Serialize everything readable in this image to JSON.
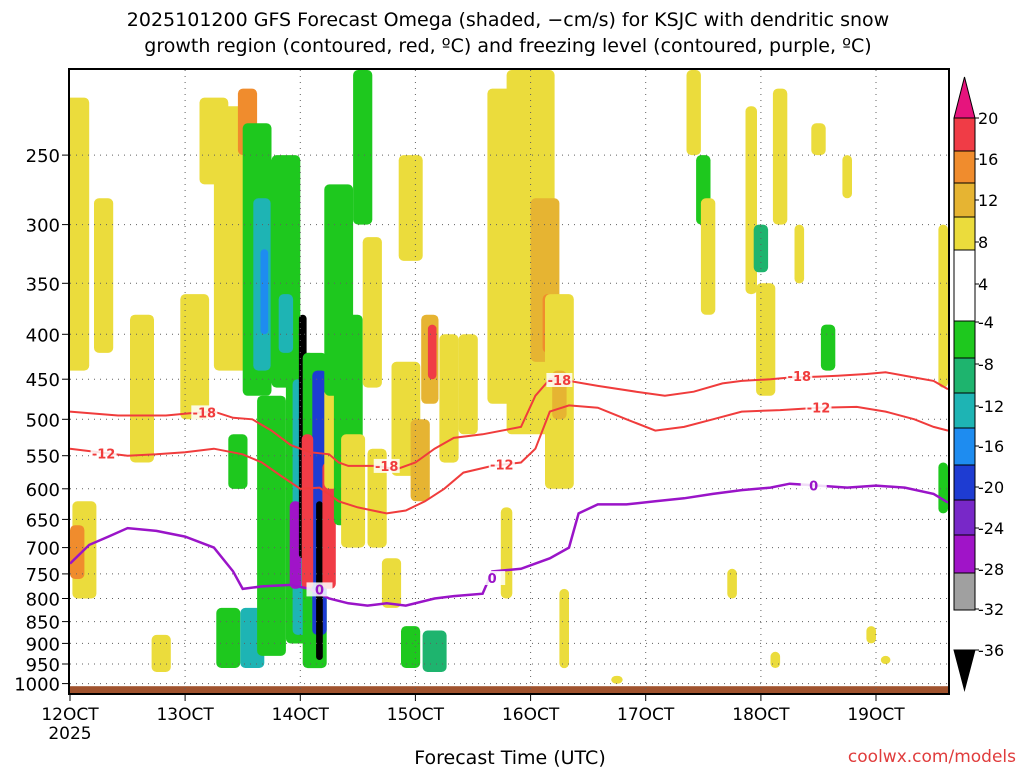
{
  "chart_data": {
    "type": "heatmap",
    "title_line1": "2025101200 GFS Forecast Omega (shaded, −cm/s) for KSJC with dendritic snow",
    "title_line2": "growth region (contoured, red, ºC) and freezing level (contoured, purple, ºC)",
    "xlabel": "Forecast Time (UTC)",
    "ylabel": "",
    "credit": "coolwx.com/models",
    "x_hours_range": [
      0,
      183
    ],
    "x_ticks": [
      {
        "label": "12OCT",
        "hour": 0,
        "sub": "2025"
      },
      {
        "label": "13OCT",
        "hour": 24
      },
      {
        "label": "14OCT",
        "hour": 48
      },
      {
        "label": "15OCT",
        "hour": 72
      },
      {
        "label": "16OCT",
        "hour": 96
      },
      {
        "label": "17OCT",
        "hour": 120
      },
      {
        "label": "18OCT",
        "hour": 144
      },
      {
        "label": "19OCT",
        "hour": 168
      }
    ],
    "y_ticks": [
      250,
      300,
      350,
      400,
      450,
      500,
      550,
      600,
      650,
      700,
      750,
      800,
      850,
      900,
      950,
      1000
    ],
    "y_range_hpa": [
      200,
      1025
    ],
    "grid": true,
    "colorbar": {
      "labels": [
        "20",
        "16",
        "12",
        "8",
        "4",
        "-4",
        "-8",
        "-12",
        "-16",
        "-20",
        "-24",
        "-28",
        "-32",
        "-36"
      ],
      "levels": [
        {
          "min": 16,
          "max": 20,
          "color": "#f03c46"
        },
        {
          "min": 12,
          "max": 16,
          "color": "#f08c2d"
        },
        {
          "min": 8,
          "max": 12,
          "color": "#e6b432"
        },
        {
          "min": 4,
          "max": 8,
          "color": "#ebdc3c"
        },
        {
          "min": -4,
          "max": 4,
          "color": "#ffffff"
        },
        {
          "min": -8,
          "max": -4,
          "color": "#1ec81e"
        },
        {
          "min": -12,
          "max": -8,
          "color": "#1eb46e"
        },
        {
          "min": -16,
          "max": -12,
          "color": "#1eb4b4"
        },
        {
          "min": -20,
          "max": -16,
          "color": "#1e8cf0"
        },
        {
          "min": -24,
          "max": -20,
          "color": "#1e3cd2"
        },
        {
          "min": -28,
          "max": -24,
          "color": "#7828c8"
        },
        {
          "min": -32,
          "max": -28,
          "color": "#a014c8"
        },
        {
          "min": -36,
          "max": -32,
          "color": "#a0a0a0"
        }
      ],
      "top_cap_color": "#e6147d",
      "bottom_cap_color": "#000000"
    },
    "contours": [
      {
        "name": "-18C",
        "label": "-18",
        "color": "#f03c3c",
        "points": [
          [
            0,
            490
          ],
          [
            10,
            495
          ],
          [
            20,
            495
          ],
          [
            25,
            492
          ],
          [
            30,
            490
          ],
          [
            34,
            498
          ],
          [
            38,
            500
          ],
          [
            42,
            515
          ],
          [
            46,
            535
          ],
          [
            50,
            545
          ],
          [
            54,
            548
          ],
          [
            56,
            560
          ],
          [
            58,
            565
          ],
          [
            64,
            565
          ],
          [
            68,
            570
          ],
          [
            72,
            560
          ],
          [
            76,
            540
          ],
          [
            80,
            525
          ],
          [
            86,
            520
          ],
          [
            94,
            510
          ],
          [
            97,
            470
          ],
          [
            100,
            450
          ],
          [
            104,
            452
          ],
          [
            110,
            458
          ],
          [
            118,
            465
          ],
          [
            124,
            470
          ],
          [
            130,
            465
          ],
          [
            136,
            455
          ],
          [
            140,
            452
          ],
          [
            146,
            450
          ],
          [
            150,
            448
          ],
          [
            156,
            447
          ],
          [
            160,
            446
          ],
          [
            166,
            444
          ],
          [
            170,
            442
          ],
          [
            176,
            448
          ],
          [
            180,
            452
          ],
          [
            183,
            462
          ]
        ],
        "labels": [
          {
            "hour": 28,
            "hpa": 491
          },
          {
            "hour": 66,
            "hpa": 565
          },
          {
            "hour": 102,
            "hpa": 451
          },
          {
            "hour": 152,
            "hpa": 446
          }
        ]
      },
      {
        "name": "-12C",
        "label": "-12",
        "color": "#f03c3c",
        "points": [
          [
            0,
            540
          ],
          [
            6,
            545
          ],
          [
            12,
            550
          ],
          [
            18,
            548
          ],
          [
            24,
            545
          ],
          [
            30,
            540
          ],
          [
            36,
            548
          ],
          [
            40,
            560
          ],
          [
            44,
            580
          ],
          [
            48,
            600
          ],
          [
            52,
            598
          ],
          [
            56,
            620
          ],
          [
            60,
            630
          ],
          [
            66,
            640
          ],
          [
            70,
            635
          ],
          [
            74,
            620
          ],
          [
            78,
            600
          ],
          [
            82,
            575
          ],
          [
            88,
            565
          ],
          [
            94,
            560
          ],
          [
            97,
            540
          ],
          [
            100,
            490
          ],
          [
            104,
            482
          ],
          [
            110,
            485
          ],
          [
            116,
            500
          ],
          [
            122,
            515
          ],
          [
            128,
            510
          ],
          [
            134,
            500
          ],
          [
            140,
            490
          ],
          [
            148,
            488
          ],
          [
            156,
            485
          ],
          [
            164,
            484
          ],
          [
            170,
            490
          ],
          [
            176,
            500
          ],
          [
            180,
            510
          ],
          [
            183,
            515
          ]
        ],
        "labels": [
          {
            "hour": 7,
            "hpa": 547
          },
          {
            "hour": 90,
            "hpa": 563
          },
          {
            "hour": 156,
            "hpa": 485
          }
        ]
      },
      {
        "name": "0C",
        "label": "0",
        "color": "#9a14c8",
        "points": [
          [
            0,
            730
          ],
          [
            4,
            695
          ],
          [
            8,
            680
          ],
          [
            12,
            665
          ],
          [
            18,
            670
          ],
          [
            24,
            680
          ],
          [
            30,
            700
          ],
          [
            34,
            745
          ],
          [
            36,
            780
          ],
          [
            40,
            775
          ],
          [
            46,
            772
          ],
          [
            50,
            780
          ],
          [
            54,
            800
          ],
          [
            58,
            810
          ],
          [
            62,
            815
          ],
          [
            66,
            810
          ],
          [
            70,
            815
          ],
          [
            76,
            800
          ],
          [
            80,
            795
          ],
          [
            86,
            790
          ],
          [
            88,
            745
          ],
          [
            94,
            740
          ],
          [
            100,
            720
          ],
          [
            104,
            700
          ],
          [
            106,
            640
          ],
          [
            110,
            625
          ],
          [
            116,
            625
          ],
          [
            122,
            620
          ],
          [
            128,
            615
          ],
          [
            134,
            608
          ],
          [
            140,
            602
          ],
          [
            146,
            598
          ],
          [
            150,
            592
          ],
          [
            156,
            595
          ],
          [
            162,
            598
          ],
          [
            168,
            595
          ],
          [
            174,
            598
          ],
          [
            180,
            608
          ],
          [
            183,
            622
          ]
        ],
        "labels": [
          {
            "hour": 52,
            "hpa": 781
          },
          {
            "hour": 88,
            "hpa": 758
          },
          {
            "hour": 155,
            "hpa": 595
          }
        ]
      }
    ],
    "omega_regions": [
      {
        "hour": 1,
        "hw": 3,
        "hpa_top": 215,
        "hpa_bot": 440,
        "level": 4
      },
      {
        "hour": 3,
        "hw": 2.5,
        "hpa_top": 620,
        "hpa_bot": 800,
        "level": 4
      },
      {
        "hour": 1.5,
        "hw": 1.5,
        "hpa_top": 660,
        "hpa_bot": 760,
        "level": 12
      },
      {
        "hour": 7,
        "hw": 2,
        "hpa_top": 280,
        "hpa_bot": 420,
        "level": 4
      },
      {
        "hour": 15,
        "hw": 2.5,
        "hpa_top": 380,
        "hpa_bot": 560,
        "level": 4
      },
      {
        "hour": 19,
        "hw": 2,
        "hpa_top": 880,
        "hpa_bot": 970,
        "level": 4
      },
      {
        "hour": 26,
        "hw": 3,
        "hpa_top": 360,
        "hpa_bot": 500,
        "level": 4
      },
      {
        "hour": 30,
        "hw": 3,
        "hpa_top": 215,
        "hpa_bot": 270,
        "level": 4
      },
      {
        "hour": 34,
        "hw": 4,
        "hpa_top": 220,
        "hpa_bot": 440,
        "level": 4
      },
      {
        "hour": 37,
        "hw": 2,
        "hpa_top": 210,
        "hpa_bot": 250,
        "level": 12
      },
      {
        "hour": 39,
        "hw": 3,
        "hpa_top": 230,
        "hpa_bot": 470,
        "level": -6
      },
      {
        "hour": 40,
        "hw": 1.8,
        "hpa_top": 280,
        "hpa_bot": 440,
        "level": -14
      },
      {
        "hour": 40.5,
        "hw": 0.8,
        "hpa_top": 320,
        "hpa_bot": 400,
        "level": -18
      },
      {
        "hour": 33,
        "hw": 2.5,
        "hpa_top": 820,
        "hpa_bot": 960,
        "level": -6
      },
      {
        "hour": 38,
        "hw": 2.5,
        "hpa_top": 820,
        "hpa_bot": 960,
        "level": -14
      },
      {
        "hour": 35,
        "hw": 2,
        "hpa_top": 520,
        "hpa_bot": 600,
        "level": -6
      },
      {
        "hour": 42,
        "hw": 3,
        "hpa_top": 470,
        "hpa_bot": 930,
        "level": -6
      },
      {
        "hour": 45,
        "hw": 3,
        "hpa_top": 250,
        "hpa_bot": 460,
        "level": -6
      },
      {
        "hour": 45,
        "hw": 1.5,
        "hpa_top": 360,
        "hpa_bot": 420,
        "level": -14
      },
      {
        "hour": 48,
        "hw": 3,
        "hpa_top": 420,
        "hpa_bot": 900,
        "level": -6
      },
      {
        "hour": 48,
        "hw": 1.6,
        "hpa_top": 450,
        "hpa_bot": 880,
        "level": -14
      },
      {
        "hour": 47,
        "hw": 1.2,
        "hpa_top": 620,
        "hpa_bot": 780,
        "level": -30
      },
      {
        "hour": 48.5,
        "hw": 0.8,
        "hpa_top": 380,
        "hpa_bot": 720,
        "level": -38
      },
      {
        "hour": 51,
        "hw": 2.5,
        "hpa_top": 420,
        "hpa_bot": 960,
        "level": -6
      },
      {
        "hour": 52,
        "hw": 1.5,
        "hpa_top": 440,
        "hpa_bot": 880,
        "level": -22
      },
      {
        "hour": 52,
        "hw": 0.7,
        "hpa_top": 620,
        "hpa_bot": 940,
        "level": -38
      },
      {
        "hour": 49.5,
        "hw": 1.2,
        "hpa_top": 520,
        "hpa_bot": 780,
        "level": 18
      },
      {
        "hour": 54,
        "hw": 1.4,
        "hpa_top": 560,
        "hpa_bot": 780,
        "level": 18
      },
      {
        "hour": 55,
        "hw": 2,
        "hpa_top": 460,
        "hpa_bot": 600,
        "level": 4
      },
      {
        "hour": 56,
        "hw": 3,
        "hpa_top": 270,
        "hpa_bot": 470,
        "level": -6
      },
      {
        "hour": 58,
        "hw": 3,
        "hpa_top": 380,
        "hpa_bot": 660,
        "level": -6
      },
      {
        "hour": 59,
        "hw": 2.5,
        "hpa_top": 520,
        "hpa_bot": 700,
        "level": 4
      },
      {
        "hour": 61,
        "hw": 2,
        "hpa_top": 200,
        "hpa_bot": 300,
        "level": -6
      },
      {
        "hour": 63,
        "hw": 2,
        "hpa_top": 310,
        "hpa_bot": 460,
        "level": 4
      },
      {
        "hour": 64,
        "hw": 2,
        "hpa_top": 540,
        "hpa_bot": 700,
        "level": 4
      },
      {
        "hour": 67,
        "hw": 2,
        "hpa_top": 720,
        "hpa_bot": 820,
        "level": 4
      },
      {
        "hour": 70,
        "hw": 3,
        "hpa_top": 430,
        "hpa_bot": 580,
        "level": 4
      },
      {
        "hour": 71,
        "hw": 2.5,
        "hpa_top": 250,
        "hpa_bot": 330,
        "level": 4
      },
      {
        "hour": 75,
        "hw": 1.8,
        "hpa_top": 380,
        "hpa_bot": 480,
        "level": 8
      },
      {
        "hour": 75.5,
        "hw": 0.9,
        "hpa_top": 390,
        "hpa_bot": 450,
        "level": 18
      },
      {
        "hour": 73,
        "hw": 2,
        "hpa_top": 500,
        "hpa_bot": 620,
        "level": 8
      },
      {
        "hour": 71,
        "hw": 2,
        "hpa_top": 860,
        "hpa_bot": 960,
        "level": -6
      },
      {
        "hour": 76,
        "hw": 2.5,
        "hpa_top": 870,
        "hpa_bot": 970,
        "level": -12
      },
      {
        "hour": 79,
        "hw": 2,
        "hpa_top": 400,
        "hpa_bot": 560,
        "level": 4
      },
      {
        "hour": 83,
        "hw": 2,
        "hpa_top": 400,
        "hpa_bot": 520,
        "level": 4
      },
      {
        "hour": 90,
        "hw": 3,
        "hpa_top": 210,
        "hpa_bot": 480,
        "level": 4
      },
      {
        "hour": 96,
        "hw": 5,
        "hpa_top": 200,
        "hpa_bot": 520,
        "level": 4
      },
      {
        "hour": 99,
        "hw": 3,
        "hpa_top": 280,
        "hpa_bot": 430,
        "level": 10
      },
      {
        "hour": 100,
        "hw": 1.5,
        "hpa_top": 360,
        "hpa_bot": 420,
        "level": 14
      },
      {
        "hour": 102,
        "hw": 3,
        "hpa_top": 360,
        "hpa_bot": 600,
        "level": 4
      },
      {
        "hour": 102,
        "hw": 1.5,
        "hpa_top": 440,
        "hpa_bot": 500,
        "level": 10
      },
      {
        "hour": 91,
        "hw": 1.2,
        "hpa_top": 630,
        "hpa_bot": 800,
        "level": 4
      },
      {
        "hour": 103,
        "hw": 1,
        "hpa_top": 780,
        "hpa_bot": 960,
        "level": 4
      },
      {
        "hour": 114,
        "hw": 1.2,
        "hpa_top": 980,
        "hpa_bot": 1000,
        "level": 4
      },
      {
        "hour": 130,
        "hw": 1.5,
        "hpa_top": 200,
        "hpa_bot": 250,
        "level": 4
      },
      {
        "hour": 132,
        "hw": 1.5,
        "hpa_top": 250,
        "hpa_bot": 300,
        "level": -6
      },
      {
        "hour": 133,
        "hw": 1.5,
        "hpa_top": 280,
        "hpa_bot": 380,
        "level": 4
      },
      {
        "hour": 142,
        "hw": 1.2,
        "hpa_top": 220,
        "hpa_bot": 360,
        "level": 4
      },
      {
        "hour": 144,
        "hw": 1.5,
        "hpa_top": 300,
        "hpa_bot": 340,
        "level": -12
      },
      {
        "hour": 145,
        "hw": 2,
        "hpa_top": 350,
        "hpa_bot": 470,
        "level": 4
      },
      {
        "hour": 148,
        "hw": 1.5,
        "hpa_top": 210,
        "hpa_bot": 300,
        "level": 4
      },
      {
        "hour": 152,
        "hw": 1,
        "hpa_top": 300,
        "hpa_bot": 350,
        "level": 4
      },
      {
        "hour": 156,
        "hw": 1.5,
        "hpa_top": 230,
        "hpa_bot": 250,
        "level": 4
      },
      {
        "hour": 158,
        "hw": 1.5,
        "hpa_top": 390,
        "hpa_bot": 440,
        "level": -6
      },
      {
        "hour": 162,
        "hw": 1,
        "hpa_top": 250,
        "hpa_bot": 280,
        "level": 4
      },
      {
        "hour": 182,
        "hw": 1,
        "hpa_top": 300,
        "hpa_bot": 460,
        "level": 4
      },
      {
        "hour": 182,
        "hw": 1,
        "hpa_top": 560,
        "hpa_bot": 640,
        "level": -6
      },
      {
        "hour": 138,
        "hw": 1,
        "hpa_top": 740,
        "hpa_bot": 800,
        "level": 4
      },
      {
        "hour": 147,
        "hw": 1,
        "hpa_top": 920,
        "hpa_bot": 960,
        "level": 4
      },
      {
        "hour": 167,
        "hw": 1,
        "hpa_top": 860,
        "hpa_bot": 900,
        "level": 4
      },
      {
        "hour": 170,
        "hw": 1,
        "hpa_top": 930,
        "hpa_bot": 950,
        "level": 4
      }
    ]
  }
}
